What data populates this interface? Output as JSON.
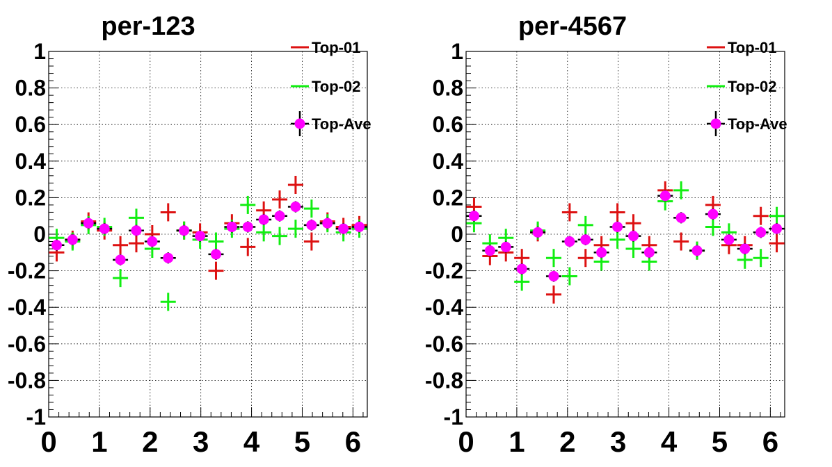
{
  "colors": {
    "top01": "#dd1111",
    "top02": "#11ee11",
    "ave": "#ff00ff",
    "ave_err": "#000000"
  },
  "chart_data": [
    {
      "type": "scatter",
      "title": "per-123",
      "xlim": [
        0,
        6.283
      ],
      "ylim": [
        -1,
        1
      ],
      "xticks": [
        "0",
        "1",
        "2",
        "3",
        "4",
        "5",
        "6"
      ],
      "yticks": [
        "-1",
        "-0.8",
        "-0.6",
        "-0.4",
        "-0.2",
        "0",
        "0.2",
        "0.4",
        "0.6",
        "0.8",
        "1"
      ],
      "grid": true,
      "legend_position": "top-right",
      "x": [
        0.157,
        0.471,
        0.785,
        1.1,
        1.414,
        1.728,
        2.042,
        2.356,
        2.67,
        2.985,
        3.299,
        3.613,
        3.927,
        4.241,
        4.555,
        4.869,
        5.184,
        5.498,
        5.812,
        6.126
      ],
      "series": [
        {
          "name": "Top-01",
          "style": "cross",
          "values": [
            -0.1,
            -0.03,
            0.07,
            0.02,
            -0.06,
            -0.05,
            0.0,
            0.12,
            0.02,
            0.01,
            -0.2,
            0.06,
            -0.07,
            0.13,
            0.19,
            0.27,
            -0.04,
            0.07,
            0.04,
            0.05
          ]
        },
        {
          "name": "Top-02",
          "style": "cross",
          "values": [
            -0.02,
            -0.04,
            0.05,
            0.04,
            -0.24,
            0.09,
            -0.08,
            -0.37,
            0.02,
            -0.03,
            -0.04,
            0.03,
            0.16,
            0.01,
            -0.01,
            0.03,
            0.14,
            0.06,
            0.01,
            0.03
          ]
        },
        {
          "name": "Top-Ave",
          "style": "marker",
          "values": [
            -0.06,
            -0.03,
            0.06,
            0.03,
            -0.14,
            0.02,
            -0.04,
            -0.13,
            0.02,
            -0.01,
            -0.11,
            0.04,
            0.04,
            0.08,
            0.1,
            0.15,
            0.05,
            0.06,
            0.03,
            0.04
          ]
        }
      ]
    },
    {
      "type": "scatter",
      "title": "per-4567",
      "xlim": [
        0,
        6.283
      ],
      "ylim": [
        -1,
        1
      ],
      "xticks": [
        "0",
        "1",
        "2",
        "3",
        "4",
        "5",
        "6"
      ],
      "yticks": [
        "-1",
        "-0.8",
        "-0.6",
        "-0.4",
        "-0.2",
        "0",
        "0.2",
        "0.4",
        "0.6",
        "0.8",
        "1"
      ],
      "grid": true,
      "legend_position": "top-right",
      "x": [
        0.157,
        0.471,
        0.785,
        1.1,
        1.414,
        1.728,
        2.042,
        2.356,
        2.67,
        2.985,
        3.299,
        3.613,
        3.927,
        4.241,
        4.555,
        4.869,
        5.184,
        5.498,
        5.812,
        6.126
      ],
      "series": [
        {
          "name": "Top-01",
          "style": "cross",
          "values": [
            0.15,
            -0.12,
            -0.1,
            -0.13,
            0.01,
            -0.33,
            0.12,
            -0.13,
            -0.06,
            0.12,
            0.06,
            -0.06,
            0.24,
            -0.04,
            -0.09,
            0.16,
            -0.06,
            -0.06,
            0.1,
            -0.05
          ]
        },
        {
          "name": "Top-02",
          "style": "cross",
          "values": [
            0.06,
            -0.05,
            -0.02,
            -0.26,
            0.02,
            -0.13,
            -0.23,
            0.05,
            -0.15,
            -0.03,
            -0.08,
            -0.15,
            0.18,
            0.24,
            -0.09,
            0.04,
            0.01,
            -0.14,
            -0.13,
            0.1
          ]
        },
        {
          "name": "Top-Ave",
          "style": "marker",
          "values": [
            0.1,
            -0.09,
            -0.07,
            -0.19,
            0.01,
            -0.23,
            -0.04,
            -0.03,
            -0.1,
            0.04,
            -0.01,
            -0.1,
            0.21,
            0.09,
            -0.09,
            0.11,
            -0.03,
            -0.08,
            0.01,
            0.03
          ]
        }
      ]
    }
  ]
}
